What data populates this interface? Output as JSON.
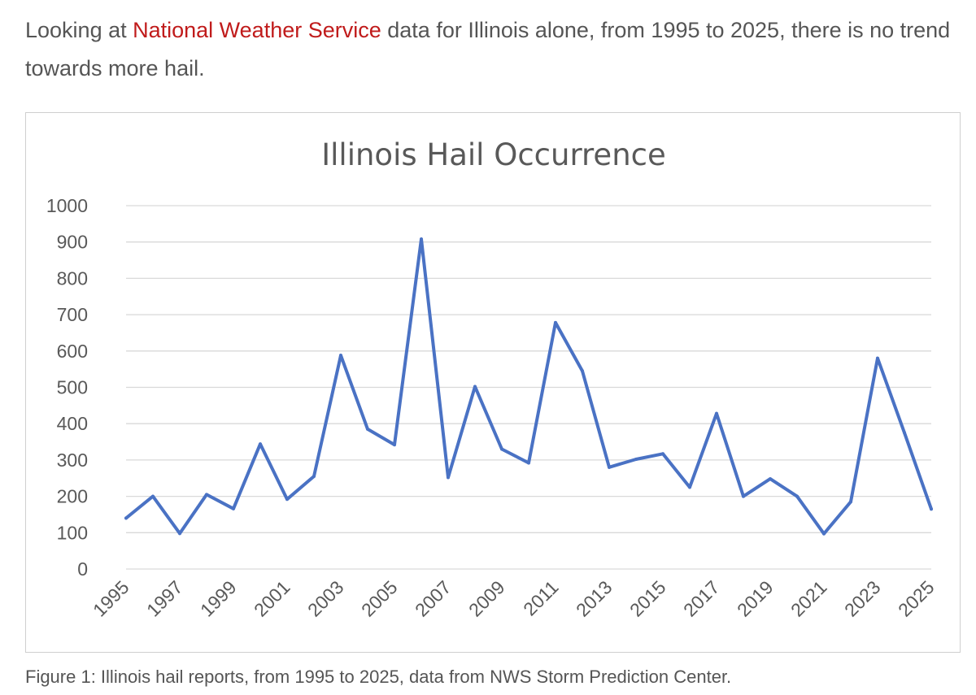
{
  "intro": {
    "before": "Looking at ",
    "link": "National Weather Service",
    "after": " data for Illinois alone, from 1995 to 2025, there is no trend towards more hail."
  },
  "caption": "Figure 1: Illinois hail reports, from 1995 to 2025, data from NWS Storm Prediction Center.",
  "colors": {
    "link": "#c01b1b",
    "series": "#4a72c4",
    "grid": "#d9d9d9"
  },
  "chart_data": {
    "type": "line",
    "title": "Illinois Hail Occurrence",
    "xlabel": "",
    "ylabel": "",
    "x": [
      1995,
      1996,
      1997,
      1998,
      1999,
      2000,
      2001,
      2002,
      2003,
      2004,
      2005,
      2006,
      2007,
      2008,
      2009,
      2010,
      2011,
      2012,
      2013,
      2014,
      2015,
      2016,
      2017,
      2018,
      2019,
      2020,
      2021,
      2022,
      2023,
      2024,
      2025
    ],
    "series": [
      {
        "values": [
          140,
          200,
          98,
          205,
          166,
          344,
          192,
          255,
          588,
          385,
          342,
          908,
          252,
          502,
          330,
          292,
          678,
          545,
          280,
          302,
          317,
          225,
          428,
          200,
          248,
          200,
          97,
          185,
          580,
          375,
          165
        ]
      }
    ],
    "ylim": [
      0,
      1000
    ],
    "yticks": [
      0,
      100,
      200,
      300,
      400,
      500,
      600,
      700,
      800,
      900,
      1000
    ],
    "xtick_labels": [
      "1995",
      "1997",
      "1999",
      "2001",
      "2003",
      "2005",
      "2007",
      "2009",
      "2011",
      "2013",
      "2015",
      "2017",
      "2019",
      "2021",
      "2023",
      "2025"
    ],
    "grid": true,
    "legend": "none"
  }
}
